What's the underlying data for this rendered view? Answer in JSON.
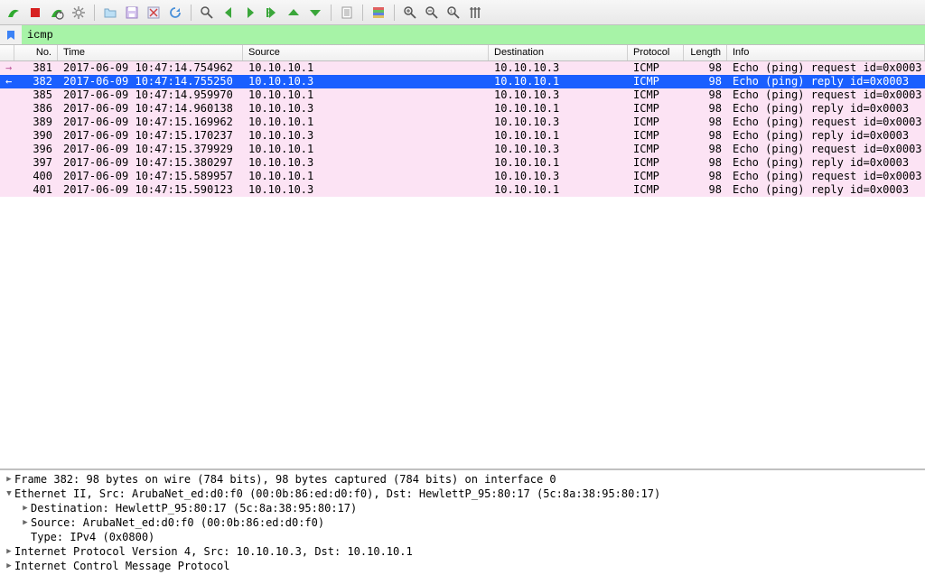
{
  "filter": {
    "value": "icmp"
  },
  "columns": {
    "no": "No.",
    "time": "Time",
    "source": "Source",
    "destination": "Destination",
    "protocol": "Protocol",
    "length": "Length",
    "info": "Info"
  },
  "colors": {
    "pink_bg": "#fce3f4",
    "pink_fg": "#000000",
    "selected_bg": "#1a5fff",
    "selected_fg": "#ffffff",
    "filter_valid_bg": "#a7f3a7",
    "toolbar_bg_top": "#f7f7f7",
    "toolbar_bg_bottom": "#e8e8e8"
  },
  "packets": [
    {
      "arrow": "→",
      "arrow_color": "#c060a0",
      "no": "381",
      "time": "2017-06-09 10:47:14.754962",
      "src": "10.10.10.1",
      "dst": "10.10.10.3",
      "proto": "ICMP",
      "len": "98",
      "info": "Echo (ping) request  id=0x0003",
      "selected": false
    },
    {
      "arrow": "←",
      "arrow_color": "#ffffff",
      "no": "382",
      "time": "2017-06-09 10:47:14.755250",
      "src": "10.10.10.3",
      "dst": "10.10.10.1",
      "proto": "ICMP",
      "len": "98",
      "info": "Echo (ping) reply    id=0x0003",
      "selected": true
    },
    {
      "arrow": "",
      "arrow_color": "",
      "no": "385",
      "time": "2017-06-09 10:47:14.959970",
      "src": "10.10.10.1",
      "dst": "10.10.10.3",
      "proto": "ICMP",
      "len": "98",
      "info": "Echo (ping) request  id=0x0003",
      "selected": false
    },
    {
      "arrow": "",
      "arrow_color": "",
      "no": "386",
      "time": "2017-06-09 10:47:14.960138",
      "src": "10.10.10.3",
      "dst": "10.10.10.1",
      "proto": "ICMP",
      "len": "98",
      "info": "Echo (ping) reply    id=0x0003",
      "selected": false
    },
    {
      "arrow": "",
      "arrow_color": "",
      "no": "389",
      "time": "2017-06-09 10:47:15.169962",
      "src": "10.10.10.1",
      "dst": "10.10.10.3",
      "proto": "ICMP",
      "len": "98",
      "info": "Echo (ping) request  id=0x0003",
      "selected": false
    },
    {
      "arrow": "",
      "arrow_color": "",
      "no": "390",
      "time": "2017-06-09 10:47:15.170237",
      "src": "10.10.10.3",
      "dst": "10.10.10.1",
      "proto": "ICMP",
      "len": "98",
      "info": "Echo (ping) reply    id=0x0003",
      "selected": false
    },
    {
      "arrow": "",
      "arrow_color": "",
      "no": "396",
      "time": "2017-06-09 10:47:15.379929",
      "src": "10.10.10.1",
      "dst": "10.10.10.3",
      "proto": "ICMP",
      "len": "98",
      "info": "Echo (ping) request  id=0x0003",
      "selected": false
    },
    {
      "arrow": "",
      "arrow_color": "",
      "no": "397",
      "time": "2017-06-09 10:47:15.380297",
      "src": "10.10.10.3",
      "dst": "10.10.10.1",
      "proto": "ICMP",
      "len": "98",
      "info": "Echo (ping) reply    id=0x0003",
      "selected": false
    },
    {
      "arrow": "",
      "arrow_color": "",
      "no": "400",
      "time": "2017-06-09 10:47:15.589957",
      "src": "10.10.10.1",
      "dst": "10.10.10.3",
      "proto": "ICMP",
      "len": "98",
      "info": "Echo (ping) request  id=0x0003",
      "selected": false
    },
    {
      "arrow": "",
      "arrow_color": "",
      "no": "401",
      "time": "2017-06-09 10:47:15.590123",
      "src": "10.10.10.3",
      "dst": "10.10.10.1",
      "proto": "ICMP",
      "len": "98",
      "info": "Echo (ping) reply    id=0x0003",
      "selected": false
    }
  ],
  "details": [
    {
      "indent": 0,
      "arrow": "▶",
      "text": "Frame 382: 98 bytes on wire (784 bits), 98 bytes captured (784 bits) on interface 0"
    },
    {
      "indent": 0,
      "arrow": "▼",
      "text": "Ethernet II, Src: ArubaNet_ed:d0:f0 (00:0b:86:ed:d0:f0), Dst: HewlettP_95:80:17 (5c:8a:38:95:80:17)"
    },
    {
      "indent": 1,
      "arrow": "▶",
      "text": "Destination: HewlettP_95:80:17 (5c:8a:38:95:80:17)"
    },
    {
      "indent": 1,
      "arrow": "▶",
      "text": "Source: ArubaNet_ed:d0:f0 (00:0b:86:ed:d0:f0)"
    },
    {
      "indent": 1,
      "arrow": "",
      "text": "Type: IPv4 (0x0800)"
    },
    {
      "indent": 0,
      "arrow": "▶",
      "text": "Internet Protocol Version 4, Src: 10.10.10.3, Dst: 10.10.10.1"
    },
    {
      "indent": 0,
      "arrow": "▶",
      "text": "Internet Control Message Protocol"
    }
  ],
  "toolbar_icons": [
    {
      "name": "shark-fin-icon",
      "type": "fin"
    },
    {
      "name": "stop-capture-icon",
      "type": "stop"
    },
    {
      "name": "restart-capture-icon",
      "type": "fin-reload"
    },
    {
      "name": "capture-options-icon",
      "type": "gear"
    },
    {
      "name": "sep"
    },
    {
      "name": "open-file-icon",
      "type": "folder"
    },
    {
      "name": "save-file-icon",
      "type": "save"
    },
    {
      "name": "close-file-icon",
      "type": "close"
    },
    {
      "name": "reload-icon",
      "type": "reload"
    },
    {
      "name": "sep"
    },
    {
      "name": "find-packet-icon",
      "type": "search"
    },
    {
      "name": "go-back-icon",
      "type": "arrow-left"
    },
    {
      "name": "go-forward-icon",
      "type": "arrow-right"
    },
    {
      "name": "go-to-packet-icon",
      "type": "goto"
    },
    {
      "name": "go-first-icon",
      "type": "arrow-up"
    },
    {
      "name": "go-last-icon",
      "type": "arrow-down"
    },
    {
      "name": "sep"
    },
    {
      "name": "auto-scroll-icon",
      "type": "autoscroll"
    },
    {
      "name": "sep"
    },
    {
      "name": "colorize-icon",
      "type": "colorize"
    },
    {
      "name": "sep"
    },
    {
      "name": "zoom-in-icon",
      "type": "zoom-in"
    },
    {
      "name": "zoom-out-icon",
      "type": "zoom-out"
    },
    {
      "name": "zoom-reset-icon",
      "type": "zoom-reset"
    },
    {
      "name": "resize-columns-icon",
      "type": "resize-cols"
    }
  ]
}
